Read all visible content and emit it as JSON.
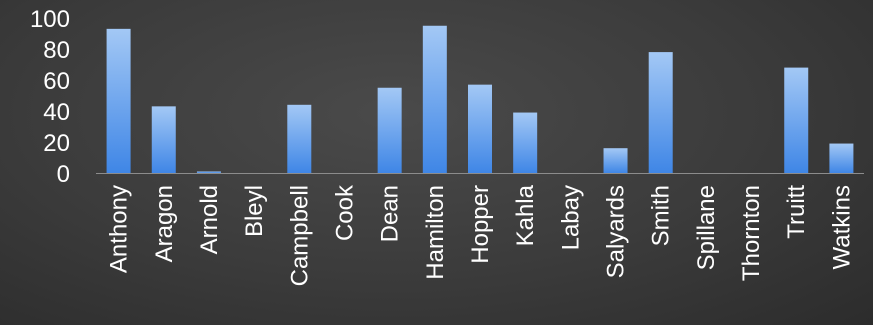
{
  "chart_data": {
    "type": "bar",
    "title": "",
    "xlabel": "",
    "ylabel": "",
    "ylim": [
      0,
      100
    ],
    "yticks": [
      0,
      20,
      40,
      60,
      80,
      100
    ],
    "grid": false,
    "legend": "none",
    "categories": [
      "Anthony",
      "Aragon",
      "Arnold",
      "Bleyl",
      "Campbell",
      "Cook",
      "Dean",
      "Hamilton",
      "Hopper",
      "Kahla",
      "Labay",
      "Salyards",
      "Smith",
      "Spillane",
      "Thornton",
      "Truitt",
      "Watkins"
    ],
    "values": [
      93,
      43,
      1,
      0,
      44,
      0,
      55,
      95,
      57,
      39,
      0,
      16,
      78,
      0,
      0,
      68,
      19
    ],
    "colors": {
      "bar_top": "#a3c8f5",
      "bar_bottom": "#3f86e6",
      "background": "#3a3a3a",
      "text": "#ffffff",
      "axis": "#8c8c8c"
    }
  }
}
